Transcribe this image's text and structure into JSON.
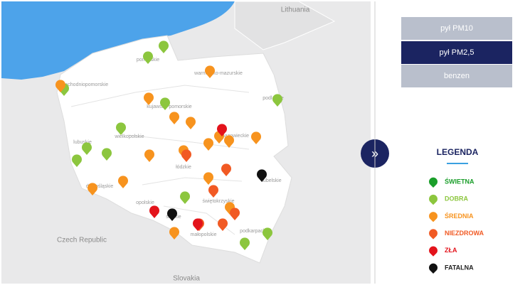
{
  "map": {
    "countries": [
      "Lithuania",
      "Czech Republic",
      "Slovakia"
    ],
    "regions": [
      "pomorskie",
      "warmińsko-mazurskie",
      "zachodniopomorskie",
      "kujawsko-pomorskie",
      "podlaskie",
      "wielkopolskie",
      "lubuskie",
      "mazowieckie",
      "łódzkie",
      "dolnośląskie",
      "lubelskie",
      "świętokrzyskie",
      "opolskie",
      "śląskie",
      "małopolskie",
      "podkarpackie"
    ],
    "expand_button": "»"
  },
  "panel": {
    "buttons": [
      "pył PM10",
      "pył PM2,5",
      "benzen"
    ],
    "active_button": 1,
    "legend_title": "LEGENDA",
    "legend": [
      {
        "label": "ŚWIETNA",
        "color": "#1a9e2a"
      },
      {
        "label": "DOBRA",
        "color": "#8cc63e"
      },
      {
        "label": "ŚREDNIA",
        "color": "#f7931e"
      },
      {
        "label": "NIEZDROWA",
        "color": "#f15a24"
      },
      {
        "label": "ZŁA",
        "color": "#e3131b"
      },
      {
        "label": "FATALNA",
        "color": "#111111"
      }
    ]
  }
}
